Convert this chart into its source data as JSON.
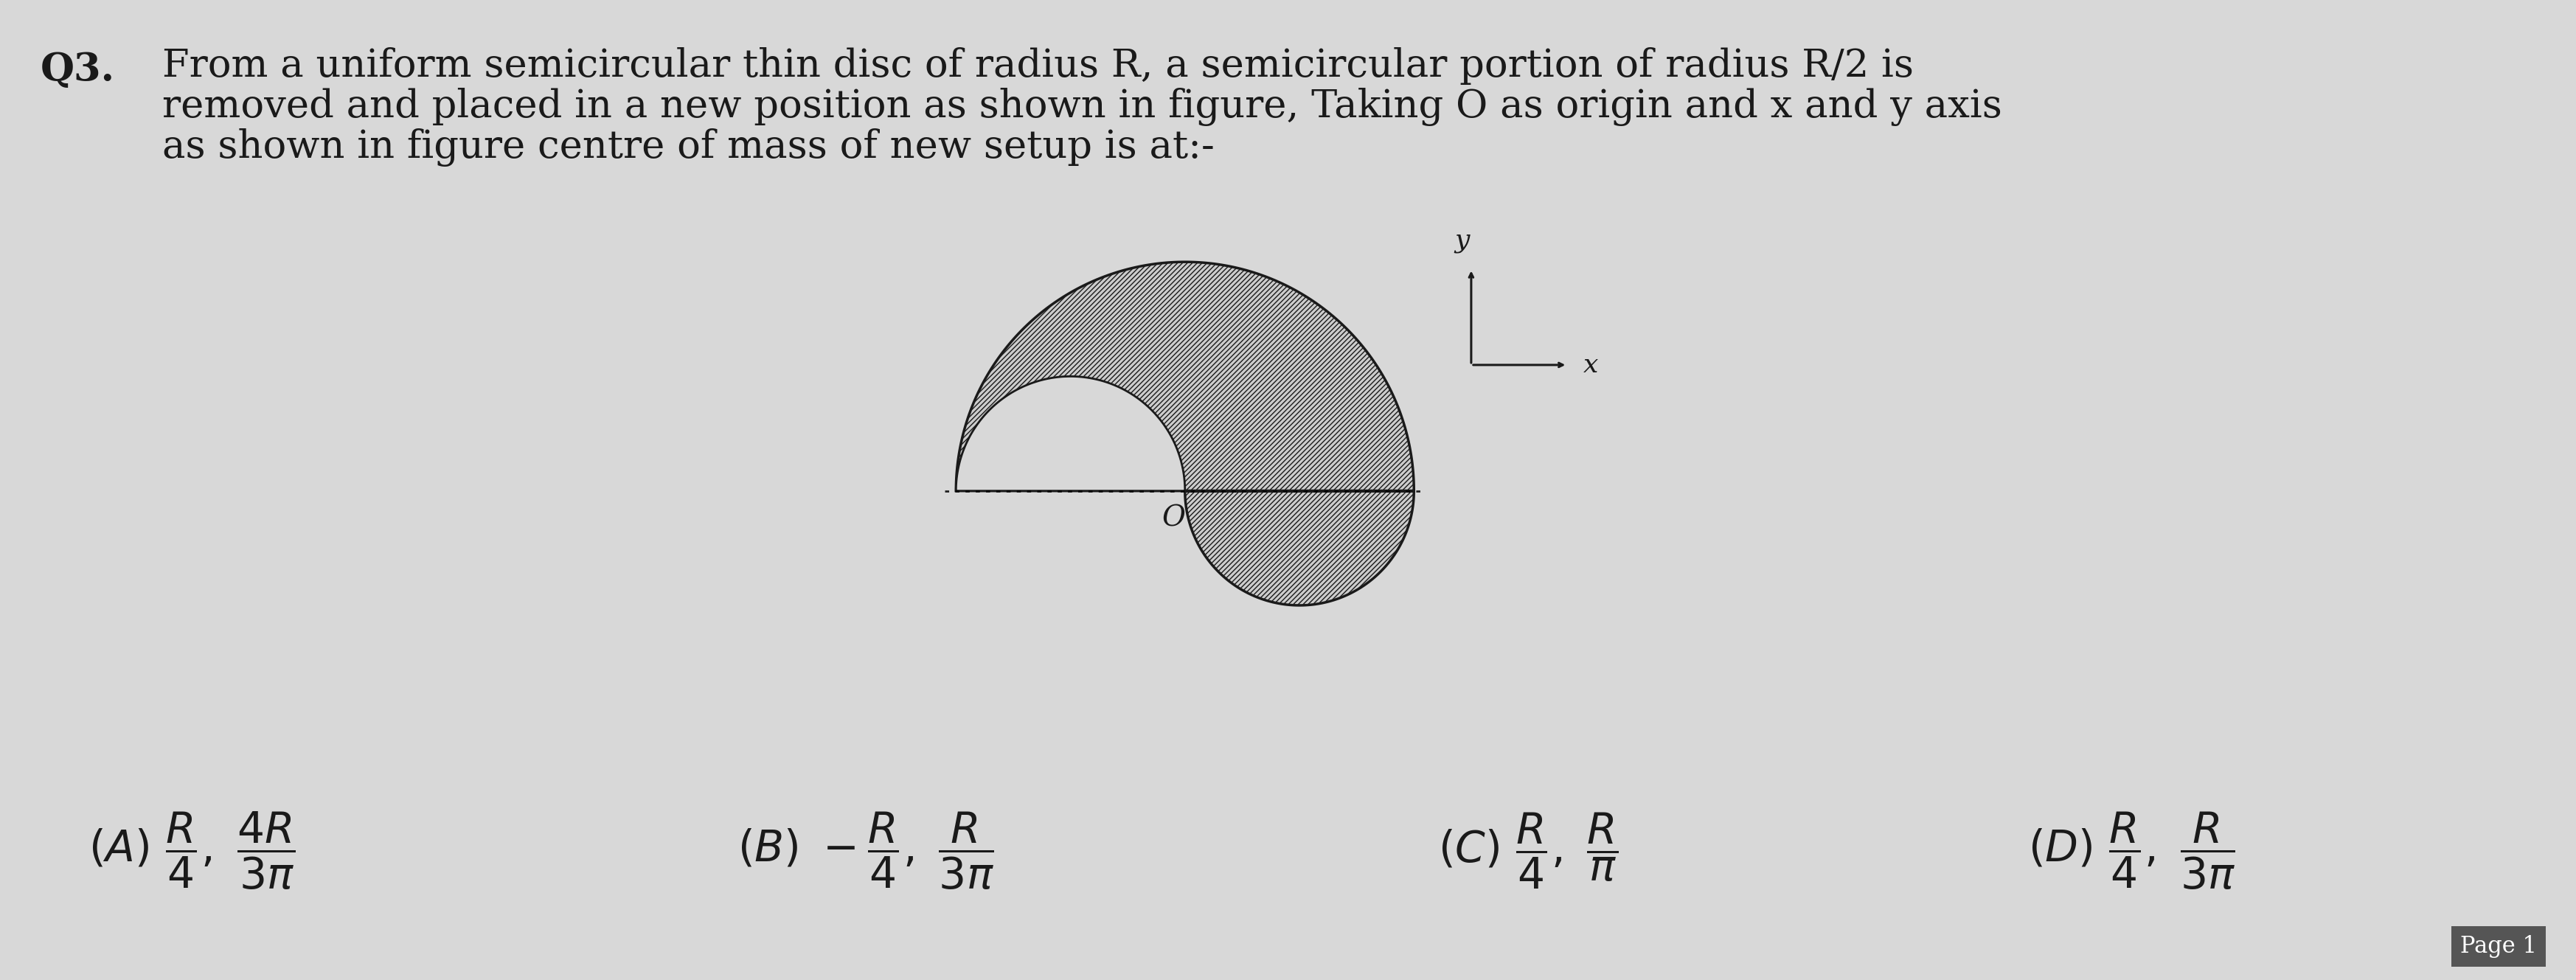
{
  "background_color": "#d8d8d8",
  "text_color": "#1a1a1a",
  "question_number": "Q3.",
  "question_text_line1": "From a uniform semicircular thin disc of radius R, a semicircular portion of radius R/2 is",
  "question_text_line2": "removed and placed in a new position as shown in figure, Taking O as origin and x and y axis",
  "question_text_line3": "as shown in figure centre of mass of new setup is at:-",
  "page_label": "Page 1",
  "hatch_color": "#222222",
  "edge_color": "#1a1a1a",
  "face_color": "#cccccc"
}
